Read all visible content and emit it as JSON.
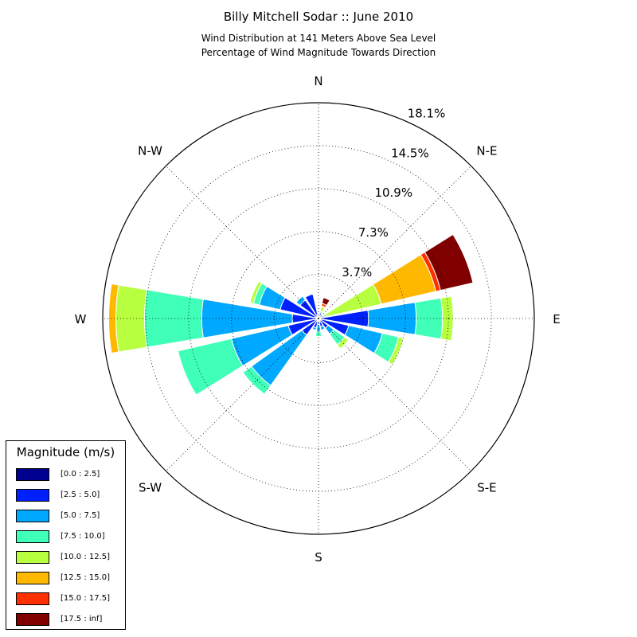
{
  "title": "Billy Mitchell Sodar :: June 2010",
  "subtitle_lines": [
    "Wind Distribution at 141 Meters Above Sea Level",
    "Percentage of Wind Magnitude Towards Direction"
  ],
  "colors": {
    "bins": [
      "#00008f",
      "#0020ff",
      "#00a8ff",
      "#40ffb8",
      "#b8ff40",
      "#ffb800",
      "#ff3000",
      "#800000"
    ],
    "gridline": "#000000"
  },
  "legend": {
    "title": "Magnitude (m/s)",
    "items": [
      "[0.0 : 2.5]",
      "[2.5 : 5.0]",
      "[5.0 : 7.5]",
      "[7.5 : 10.0]",
      "[10.0 : 12.5]",
      "[12.5 : 15.0]",
      "[15.0 : 17.5]",
      "[17.5 : inf]"
    ]
  },
  "chart_data": {
    "type": "windrose",
    "radial_tick_labels": [
      "3.7%",
      "7.3%",
      "10.9%",
      "14.5%",
      "18.1%"
    ],
    "radial_ticks": [
      3.7,
      7.3,
      10.9,
      14.5,
      18.1
    ],
    "rmax": 18.1,
    "direction_labels": [
      "N",
      "N-E",
      "E",
      "S-E",
      "S",
      "S-W",
      "W",
      "N-W"
    ],
    "direction_angles": [
      0,
      45,
      90,
      135,
      180,
      225,
      270,
      315
    ],
    "sector_width_deg": 19,
    "bins": [
      "[0.0 : 2.5]",
      "[2.5 : 5.0]",
      "[5.0 : 7.5]",
      "[7.5 : 10.0]",
      "[10.0 : 12.5]",
      "[12.5 : 15.0]",
      "[15.0 : 17.5]",
      "[17.5 : inf]"
    ],
    "sectors": [
      {
        "direction": 0,
        "cumulative": [
          0.3,
          0.3,
          0.3,
          0.3,
          0.3,
          0.3,
          0.3,
          0.3
        ]
      },
      {
        "direction": 22.5,
        "cumulative": [
          0.3,
          0.5,
          0.5,
          0.6,
          1.0,
          1.1,
          1.3,
          1.8
        ]
      },
      {
        "direction": 45,
        "cumulative": [
          0.3,
          0.3,
          0.3,
          0.3,
          0.3,
          0.3,
          0.3,
          0.3
        ]
      },
      {
        "direction": 67.5,
        "cumulative": [
          0.3,
          0.4,
          0.5,
          0.7,
          5.4,
          10.1,
          10.5,
          13.3
        ]
      },
      {
        "direction": 90,
        "cumulative": [
          0.3,
          4.2,
          8.2,
          10.4,
          11.3,
          11.3,
          11.3,
          11.3
        ]
      },
      {
        "direction": 112.5,
        "cumulative": [
          0.3,
          2.6,
          5.5,
          6.9,
          7.3,
          7.3,
          7.3,
          7.3
        ]
      },
      {
        "direction": 135,
        "cumulative": [
          0.3,
          1.0,
          1.6,
          2.7,
          3.1,
          3.1,
          3.1,
          3.1
        ]
      },
      {
        "direction": 157.5,
        "cumulative": [
          0.3,
          0.7,
          1.0,
          1.0,
          1.0,
          1.0,
          1.0,
          1.0
        ]
      },
      {
        "direction": 180,
        "cumulative": [
          0.3,
          0.5,
          1.1,
          1.5,
          1.5,
          1.5,
          1.5,
          1.5
        ]
      },
      {
        "direction": 202.5,
        "cumulative": [
          0.3,
          0.8,
          1.0,
          1.0,
          1.0,
          1.0,
          1.0,
          1.0
        ]
      },
      {
        "direction": 225,
        "cumulative": [
          0.3,
          1.7,
          6.9,
          7.8,
          7.8,
          7.8,
          7.8,
          7.8
        ]
      },
      {
        "direction": 247.5,
        "cumulative": [
          0.3,
          2.6,
          7.5,
          12.1,
          12.1,
          12.1,
          12.1,
          12.1
        ]
      },
      {
        "direction": 270,
        "cumulative": [
          0.3,
          2.2,
          9.8,
          14.6,
          17.0,
          17.6,
          17.6,
          17.6
        ]
      },
      {
        "direction": 292.5,
        "cumulative": [
          0.3,
          3.3,
          5.1,
          5.6,
          5.9,
          5.9,
          5.9,
          5.9
        ]
      },
      {
        "direction": 315,
        "cumulative": [
          0.3,
          1.9,
          2.3,
          2.3,
          2.3,
          2.3,
          2.3,
          2.3
        ]
      },
      {
        "direction": 337.5,
        "cumulative": [
          0.3,
          2.1,
          2.1,
          2.1,
          2.1,
          2.1,
          2.1,
          2.1
        ]
      }
    ]
  }
}
